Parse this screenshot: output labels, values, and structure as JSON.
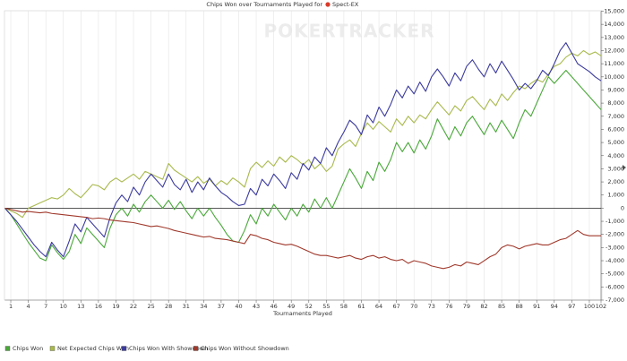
{
  "chart_data": {
    "type": "line",
    "title": "Chips Won over Tournaments Played for",
    "player": "Spect-EX",
    "watermark": "POKERTRACKER",
    "x_label": "Tournaments Played",
    "grid": "x",
    "legend": "bottom-left",
    "x": [
      0,
      1,
      2,
      3,
      4,
      5,
      6,
      7,
      8,
      9,
      10,
      11,
      12,
      13,
      14,
      15,
      16,
      17,
      18,
      19,
      20,
      21,
      22,
      23,
      24,
      25,
      26,
      27,
      28,
      29,
      30,
      31,
      32,
      33,
      34,
      35,
      36,
      37,
      38,
      39,
      40,
      41,
      42,
      43,
      44,
      45,
      46,
      47,
      48,
      49,
      50,
      51,
      52,
      53,
      54,
      55,
      56,
      57,
      58,
      59,
      60,
      61,
      62,
      63,
      64,
      65,
      66,
      67,
      68,
      69,
      70,
      71,
      72,
      73,
      74,
      75,
      76,
      77,
      78,
      79,
      80,
      81,
      82,
      83,
      84,
      85,
      86,
      87,
      88,
      89,
      90,
      91,
      92,
      93,
      94,
      95,
      96,
      97,
      98,
      99,
      100,
      101,
      102
    ],
    "xlim": [
      0,
      102
    ],
    "xticks": [
      1,
      4,
      7,
      10,
      13,
      16,
      19,
      22,
      25,
      28,
      31,
      34,
      37,
      40,
      43,
      46,
      49,
      52,
      55,
      58,
      61,
      64,
      67,
      70,
      73,
      76,
      79,
      82,
      85,
      88,
      91,
      94,
      97,
      100,
      102
    ],
    "ylim": [
      -7000,
      15000
    ],
    "yticks": [
      {
        "value": -7000,
        "label": "-7,000"
      },
      {
        "value": -6000,
        "label": "-6,000"
      },
      {
        "value": -5000,
        "label": "-5,000"
      },
      {
        "value": -4000,
        "label": "-4,000"
      },
      {
        "value": -3000,
        "label": "-3,000"
      },
      {
        "value": -2000,
        "label": "-2,000"
      },
      {
        "value": -1000,
        "label": "-1,000"
      },
      0,
      {
        "value": 1000,
        "label": "1,000"
      },
      {
        "value": 2000,
        "label": "2,000"
      },
      {
        "value": 3000,
        "label": "3,000"
      },
      {
        "value": 4000,
        "label": "4,000"
      },
      {
        "value": 5000,
        "label": "5,000"
      },
      {
        "value": 6000,
        "label": "6,000"
      },
      {
        "value": 7000,
        "label": "7,000"
      },
      {
        "value": 8000,
        "label": "8,000"
      },
      {
        "value": 9000,
        "label": "9,000"
      },
      {
        "value": 10000,
        "label": "10,000"
      },
      {
        "value": 11000,
        "label": "11,000"
      },
      {
        "value": 12000,
        "label": "12,000"
      },
      {
        "value": 13000,
        "label": "13,000"
      },
      {
        "value": 14000,
        "label": "14,000"
      },
      {
        "value": 15000,
        "label": "15,000"
      }
    ],
    "series": [
      {
        "name": "Chips Won",
        "color": "#4aa83a",
        "values": [
          0,
          -500,
          -1200,
          -1900,
          -2600,
          -3200,
          -3800,
          -4000,
          -2800,
          -3400,
          -3900,
          -3300,
          -2000,
          -2700,
          -1500,
          -2000,
          -2500,
          -3000,
          -1500,
          -500,
          0,
          -600,
          300,
          -300,
          500,
          1000,
          500,
          0,
          600,
          -100,
          500,
          -200,
          -800,
          0,
          -600,
          0,
          -700,
          -1300,
          -2000,
          -2500,
          -2600,
          -1700,
          -500,
          -1200,
          0,
          -600,
          300,
          -300,
          -900,
          0,
          -600,
          300,
          -300,
          700,
          0,
          800,
          0,
          1000,
          2000,
          3000,
          2300,
          1500,
          2800,
          2100,
          3500,
          2800,
          3700,
          5000,
          4300,
          5000,
          4200,
          5200,
          4500,
          5500,
          6800,
          6000,
          5200,
          6200,
          5500,
          6500,
          7000,
          6300,
          5600,
          6500,
          5800,
          6700,
          6000,
          5300,
          6500,
          7500,
          7000,
          8000,
          9000,
          10000,
          9500,
          10000,
          10500,
          10000,
          9500,
          9000,
          8500,
          8000,
          7500
        ]
      },
      {
        "name": "Net Expected Chips Won",
        "color": "#a9b94c",
        "values": [
          0,
          -200,
          -400,
          -700,
          0,
          200,
          400,
          600,
          800,
          700,
          1000,
          1500,
          1100,
          800,
          1300,
          1800,
          1700,
          1400,
          2000,
          2300,
          2000,
          2300,
          2600,
          2200,
          2800,
          2600,
          2400,
          2200,
          3400,
          2900,
          2600,
          2300,
          2000,
          2400,
          1900,
          2200,
          1700,
          2100,
          1800,
          2300,
          2000,
          1600,
          3000,
          3500,
          3100,
          3600,
          3200,
          3900,
          3500,
          4000,
          3700,
          3300,
          3700,
          3000,
          3400,
          2800,
          3200,
          4500,
          4900,
          5200,
          4700,
          5700,
          6500,
          6000,
          6600,
          6200,
          5800,
          6800,
          6300,
          7000,
          6500,
          7100,
          6800,
          7500,
          8100,
          7600,
          7100,
          7800,
          7400,
          8200,
          8500,
          8000,
          7500,
          8300,
          7800,
          8700,
          8200,
          8800,
          9300,
          9100,
          9500,
          9800,
          9600,
          10200,
          10800,
          11000,
          11500,
          11800,
          11600,
          12000,
          11700,
          11900,
          11600
        ]
      },
      {
        "name": "Chips Won With Showdown",
        "color": "#3b3a9e",
        "values": [
          0,
          -500,
          -1000,
          -1600,
          -2200,
          -2800,
          -3300,
          -3700,
          -2600,
          -3200,
          -3700,
          -2500,
          -1200,
          -1800,
          -700,
          -1200,
          -1700,
          -2200,
          -700,
          400,
          1000,
          500,
          1600,
          1000,
          2000,
          2600,
          2100,
          1600,
          2600,
          1800,
          1400,
          2200,
          1200,
          2000,
          1400,
          2300,
          1700,
          1200,
          900,
          500,
          200,
          300,
          1500,
          1000,
          2200,
          1700,
          2600,
          2100,
          1500,
          2700,
          2200,
          3400,
          2900,
          3900,
          3400,
          4600,
          4000,
          5000,
          5800,
          6700,
          6300,
          5600,
          7100,
          6500,
          7700,
          7000,
          7900,
          9000,
          8400,
          9300,
          8700,
          9600,
          8900,
          10000,
          10600,
          10000,
          9300,
          10300,
          9700,
          10800,
          11300,
          10600,
          10000,
          11000,
          10300,
          11200,
          10500,
          9800,
          9000,
          9500,
          9100,
          9700,
          10500,
          10100,
          11000,
          12000,
          12600,
          11800,
          11000,
          10700,
          10400,
          10000,
          9700
        ]
      },
      {
        "name": "Chips Won Without Showdown",
        "color": "#a0392c",
        "values": [
          0,
          -100,
          -200,
          -300,
          -250,
          -300,
          -350,
          -300,
          -400,
          -450,
          -500,
          -550,
          -600,
          -650,
          -700,
          -800,
          -750,
          -800,
          -900,
          -950,
          -1000,
          -1050,
          -1100,
          -1200,
          -1300,
          -1400,
          -1350,
          -1450,
          -1550,
          -1700,
          -1800,
          -1900,
          -2000,
          -2100,
          -2200,
          -2150,
          -2300,
          -2350,
          -2400,
          -2500,
          -2600,
          -2700,
          -2000,
          -2100,
          -2300,
          -2400,
          -2600,
          -2700,
          -2800,
          -2750,
          -2900,
          -3100,
          -3300,
          -3500,
          -3600,
          -3600,
          -3700,
          -3800,
          -3700,
          -3600,
          -3800,
          -3900,
          -3700,
          -3600,
          -3800,
          -3700,
          -3900,
          -4000,
          -3900,
          -4200,
          -4000,
          -4100,
          -4200,
          -4400,
          -4500,
          -4600,
          -4500,
          -4300,
          -4400,
          -4100,
          -4200,
          -4300,
          -4000,
          -3700,
          -3500,
          -3000,
          -2800,
          -2900,
          -3100,
          -2900,
          -2800,
          -2700,
          -2800,
          -2800,
          -2600,
          -2400,
          -2300,
          -2000,
          -1700,
          -2000,
          -2100,
          -2100,
          -2100
        ]
      }
    ]
  }
}
